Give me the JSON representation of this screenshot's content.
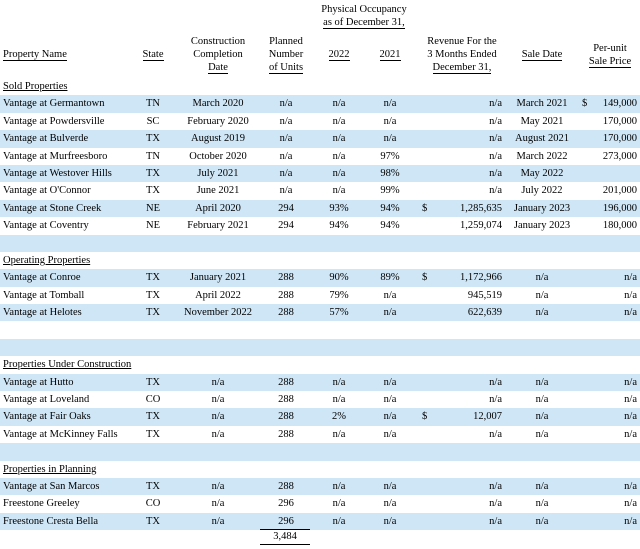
{
  "headers": {
    "property_name": "Property Name",
    "state": "State",
    "completion": [
      "Construction",
      "Completion",
      "Date"
    ],
    "units": [
      "Planned",
      "Number",
      "of Units"
    ],
    "occupancy_group": [
      "Physical Occupancy",
      "as of December 31,"
    ],
    "y2022": "2022",
    "y2021": "2021",
    "revenue": [
      "Revenue For the",
      "3 Months Ended",
      "December 31,"
    ],
    "sale_date": "Sale Date",
    "per_unit": [
      "Per-unit",
      "Sale Price"
    ]
  },
  "sections": [
    {
      "title": "Sold Properties",
      "rows": [
        {
          "name": "Vantage at Germantown",
          "state": "TN",
          "completion": "March 2020",
          "units": "n/a",
          "y2022": "n/a",
          "y2021": "n/a",
          "rev_dollar": "",
          "revenue": "n/a",
          "sale_date": "March 2021",
          "price_dollar": "$",
          "price": "149,000"
        },
        {
          "name": "Vantage at Powdersville",
          "state": "SC",
          "completion": "February 2020",
          "units": "n/a",
          "y2022": "n/a",
          "y2021": "n/a",
          "rev_dollar": "",
          "revenue": "n/a",
          "sale_date": "May 2021",
          "price_dollar": "",
          "price": "170,000"
        },
        {
          "name": "Vantage at Bulverde",
          "state": "TX",
          "completion": "August 2019",
          "units": "n/a",
          "y2022": "n/a",
          "y2021": "n/a",
          "rev_dollar": "",
          "revenue": "n/a",
          "sale_date": "August 2021",
          "price_dollar": "",
          "price": "170,000"
        },
        {
          "name": "Vantage at Murfreesboro",
          "state": "TN",
          "completion": "October 2020",
          "units": "n/a",
          "y2022": "n/a",
          "y2021": "97%",
          "rev_dollar": "",
          "revenue": "n/a",
          "sale_date": "March 2022",
          "price_dollar": "",
          "price": "273,000"
        },
        {
          "name": "Vantage at Westover Hills",
          "state": "TX",
          "completion": "July 2021",
          "units": "n/a",
          "y2022": "n/a",
          "y2021": "98%",
          "rev_dollar": "",
          "revenue": "n/a",
          "sale_date": "May 2022",
          "price_dollar": "",
          "price": ""
        },
        {
          "name": "Vantage at O'Connor",
          "state": "TX",
          "completion": "June 2021",
          "units": "n/a",
          "y2022": "n/a",
          "y2021": "99%",
          "rev_dollar": "",
          "revenue": "n/a",
          "sale_date": "July 2022",
          "price_dollar": "",
          "price": "201,000"
        },
        {
          "name": "Vantage at Stone Creek",
          "state": "NE",
          "completion": "April 2020",
          "units": "294",
          "y2022": "93%",
          "y2021": "94%",
          "rev_dollar": "$",
          "revenue": "1,285,635",
          "sale_date": "January 2023",
          "price_dollar": "",
          "price": "196,000"
        },
        {
          "name": "Vantage at Coventry",
          "state": "NE",
          "completion": "February 2021",
          "units": "294",
          "y2022": "94%",
          "y2021": "94%",
          "rev_dollar": "",
          "revenue": "1,259,074",
          "sale_date": "January 2023",
          "price_dollar": "",
          "price": "180,000"
        }
      ]
    },
    {
      "title": "Operating Properties",
      "rows": [
        {
          "name": "Vantage at Conroe",
          "state": "TX",
          "completion": "January 2021",
          "units": "288",
          "y2022": "90%",
          "y2021": "89%",
          "rev_dollar": "$",
          "revenue": "1,172,966",
          "sale_date": "n/a",
          "price_dollar": "",
          "price": "n/a"
        },
        {
          "name": "Vantage at Tomball",
          "state": "TX",
          "completion": "April 2022",
          "units": "288",
          "y2022": "79%",
          "y2021": "n/a",
          "rev_dollar": "",
          "revenue": "945,519",
          "sale_date": "n/a",
          "price_dollar": "",
          "price": "n/a"
        },
        {
          "name": "Vantage at Helotes",
          "state": "TX",
          "completion": "November 2022",
          "units": "288",
          "y2022": "57%",
          "y2021": "n/a",
          "rev_dollar": "",
          "revenue": "622,639",
          "sale_date": "n/a",
          "price_dollar": "",
          "price": "n/a"
        }
      ]
    },
    {
      "title": "Properties Under Construction",
      "rows": [
        {
          "name": "Vantage at Hutto",
          "state": "TX",
          "completion": "n/a",
          "units": "288",
          "y2022": "n/a",
          "y2021": "n/a",
          "rev_dollar": "",
          "revenue": "n/a",
          "sale_date": "n/a",
          "price_dollar": "",
          "price": "n/a"
        },
        {
          "name": "Vantage at Loveland",
          "state": "CO",
          "completion": "n/a",
          "units": "288",
          "y2022": "n/a",
          "y2021": "n/a",
          "rev_dollar": "",
          "revenue": "n/a",
          "sale_date": "n/a",
          "price_dollar": "",
          "price": "n/a"
        },
        {
          "name": "Vantage at Fair Oaks",
          "state": "TX",
          "completion": "n/a",
          "units": "288",
          "y2022": "2%",
          "y2021": "n/a",
          "rev_dollar": "$",
          "revenue": "12,007",
          "sale_date": "n/a",
          "price_dollar": "",
          "price": "n/a"
        },
        {
          "name": "Vantage at McKinney Falls",
          "state": "TX",
          "completion": "n/a",
          "units": "288",
          "y2022": "n/a",
          "y2021": "n/a",
          "rev_dollar": "",
          "revenue": "n/a",
          "sale_date": "n/a",
          "price_dollar": "",
          "price": "n/a"
        }
      ]
    },
    {
      "title": "Properties in Planning",
      "rows": [
        {
          "name": "Vantage at San Marcos",
          "state": "TX",
          "completion": "n/a",
          "units": "288",
          "y2022": "n/a",
          "y2021": "n/a",
          "rev_dollar": "",
          "revenue": "n/a",
          "sale_date": "n/a",
          "price_dollar": "",
          "price": "n/a"
        },
        {
          "name": "Freestone Greeley",
          "state": "CO",
          "completion": "n/a",
          "units": "296",
          "y2022": "n/a",
          "y2021": "n/a",
          "rev_dollar": "",
          "revenue": "n/a",
          "sale_date": "n/a",
          "price_dollar": "",
          "price": "n/a"
        },
        {
          "name": "Freestone Cresta Bella",
          "state": "TX",
          "completion": "n/a",
          "units": "296",
          "y2022": "n/a",
          "y2021": "n/a",
          "rev_dollar": "",
          "revenue": "n/a",
          "sale_date": "n/a",
          "price_dollar": "",
          "price": "n/a"
        }
      ]
    }
  ],
  "total_units": "3,484",
  "colors": {
    "row_shade": "#cfe6f6"
  }
}
